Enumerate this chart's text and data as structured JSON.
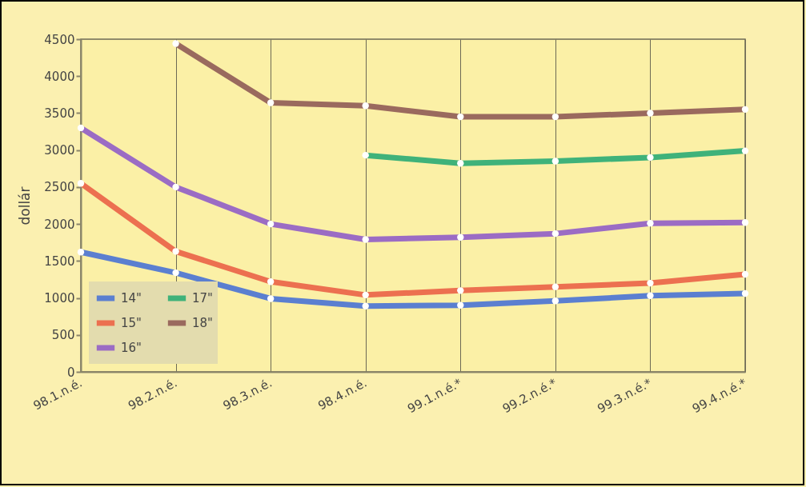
{
  "chart_data": {
    "type": "line",
    "ylabel": "dollár",
    "categories": [
      "98.1.n.é.",
      "98.2.n.é.",
      "98.3.n.é.",
      "98.4.n.é.",
      "99.1.n.é.*",
      "99.2.n.é.*",
      "99.3.n.é.*",
      "99.4.n.é.*"
    ],
    "series": [
      {
        "name": "14\"",
        "color": "#5b7fd0",
        "values": [
          1620,
          1340,
          990,
          890,
          900,
          960,
          1030,
          1060
        ]
      },
      {
        "name": "15\"",
        "color": "#ec7050",
        "values": [
          2550,
          1630,
          1220,
          1040,
          1100,
          1150,
          1200,
          1320
        ]
      },
      {
        "name": "16\"",
        "color": "#9b6cc4",
        "values": [
          3300,
          2500,
          2000,
          1790,
          1820,
          1870,
          2010,
          2020
        ]
      },
      {
        "name": "17\"",
        "color": "#3fb27a",
        "values": [
          null,
          null,
          null,
          2930,
          2820,
          2850,
          2900,
          2990
        ]
      },
      {
        "name": "18\"",
        "color": "#9a6a5e",
        "values": [
          null,
          4440,
          3640,
          3600,
          3450,
          3450,
          3500,
          3550
        ]
      }
    ],
    "ylim": [
      0,
      4500
    ],
    "yticks": [
      0,
      500,
      1000,
      1500,
      2000,
      2500,
      3000,
      3500,
      4000,
      4500
    ],
    "grid": "x",
    "legend": "bottom left",
    "marker": "circle",
    "line_style": "solid"
  }
}
